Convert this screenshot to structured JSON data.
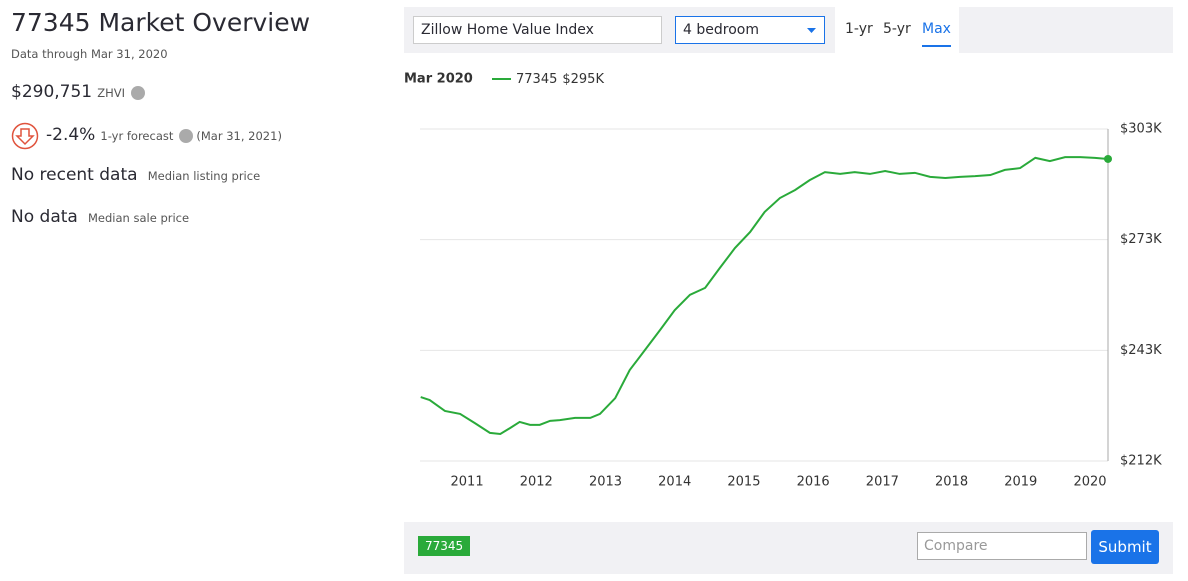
{
  "overview": {
    "title": "77345 Market Overview",
    "subtitle": "Data through Mar 31, 2020",
    "zhvi_value": "$290,751",
    "zhvi_label": "ZHVI",
    "forecast_value": "-2.4%",
    "forecast_label": "1-yr forecast",
    "forecast_date": "(Mar 31, 2021)",
    "listing_value": "No recent data",
    "listing_label": "Median listing price",
    "sale_value": "No data",
    "sale_label": "Median sale price"
  },
  "controls": {
    "metric": "Zillow Home Value Index",
    "filter": "4 bedroom",
    "ranges": [
      "1-yr",
      "5-yr",
      "Max"
    ],
    "active_range": 2
  },
  "chart_data": {
    "type": "line",
    "hover_date": "Mar 2020",
    "x": [
      2010.33,
      2010.46,
      2010.68,
      2010.9,
      2011.11,
      2011.33,
      2011.48,
      2011.62,
      2011.76,
      2011.91,
      2012.05,
      2012.2,
      2012.34,
      2012.56,
      2012.78,
      2012.92,
      2013.14,
      2013.35,
      2013.57,
      2013.79,
      2014.0,
      2014.22,
      2014.44,
      2014.65,
      2014.87,
      2015.09,
      2015.3,
      2015.52,
      2015.74,
      2015.95,
      2016.17,
      2016.39,
      2016.6,
      2016.82,
      2017.04,
      2017.25,
      2017.47,
      2017.69,
      2017.91,
      2018.12,
      2018.34,
      2018.56,
      2018.77,
      2018.99,
      2019.21,
      2019.42,
      2019.64,
      2019.86,
      2020.07,
      2020.26
    ],
    "series": [
      {
        "name": "77345",
        "legend_value": "$295K",
        "color": "#2aaa3a",
        "values": [
          229900,
          229100,
          226100,
          225300,
          222800,
          220100,
          219800,
          221400,
          223100,
          222300,
          222300,
          223400,
          223600,
          224200,
          224200,
          225300,
          229600,
          237300,
          242800,
          248300,
          253700,
          257900,
          259800,
          265200,
          270700,
          275100,
          280600,
          284400,
          286600,
          289300,
          291500,
          291000,
          291500,
          291000,
          291800,
          291000,
          291300,
          290200,
          289900,
          290200,
          290400,
          290700,
          292100,
          292600,
          295400,
          294500,
          295600,
          295600,
          295400,
          295100
        ]
      }
    ],
    "xlim": [
      2010.32,
      2020.26
    ],
    "xticks": [
      2011,
      2012,
      2013,
      2014,
      2015,
      2016,
      2017,
      2018,
      2019,
      2020
    ],
    "ylim": [
      212400,
      303300
    ],
    "yticks": [
      {
        "value": 212400,
        "label": "$212K"
      },
      {
        "value": 242700,
        "label": "$243K"
      },
      {
        "value": 273000,
        "label": "$273K"
      },
      {
        "value": 303300,
        "label": "$303K"
      }
    ],
    "grid": true
  },
  "footer": {
    "tag": "77345",
    "compare_placeholder": "Compare",
    "submit": "Submit"
  }
}
